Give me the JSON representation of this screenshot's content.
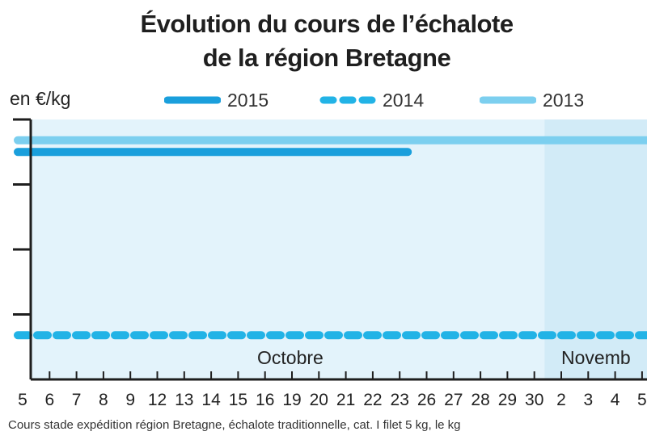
{
  "title_line1": "Évolution du cours de l’échalote",
  "title_line2": "de la région Bretagne",
  "unit_label": "en €/kg",
  "legend": [
    {
      "label": "2015",
      "style": "solid",
      "color": "#1a9fdc"
    },
    {
      "label": "2014",
      "style": "dashed",
      "color": "#22b3e6"
    },
    {
      "label": "2013",
      "style": "solid",
      "color": "#7ccfef"
    }
  ],
  "month_labels": [
    "Octobre",
    "Novemb"
  ],
  "caption": "Cours stade expédition région Bretagne, échalote traditionnelle, cat. I filet 5 kg, le kg",
  "colors": {
    "plot_bg": "#e3f3fb",
    "november_bg": "#d2ebf7",
    "axis": "#1e1e1e"
  },
  "chart_data": {
    "type": "line",
    "categories": [
      "5",
      "6",
      "7",
      "8",
      "9",
      "12",
      "13",
      "14",
      "15",
      "16",
      "19",
      "20",
      "21",
      "22",
      "23",
      "26",
      "27",
      "28",
      "29",
      "30",
      "2",
      "3",
      "4",
      "5"
    ],
    "series": [
      {
        "name": "2015",
        "start": "5",
        "end": "23",
        "level_fraction": 0.875
      },
      {
        "name": "2014",
        "start": "5",
        "end": "5",
        "level_fraction": 0.17
      },
      {
        "name": "2013",
        "start": "5",
        "end": "5",
        "level_fraction": 0.92
      }
    ],
    "y_tick_count": 4,
    "grid": false,
    "legend_position": "top"
  }
}
